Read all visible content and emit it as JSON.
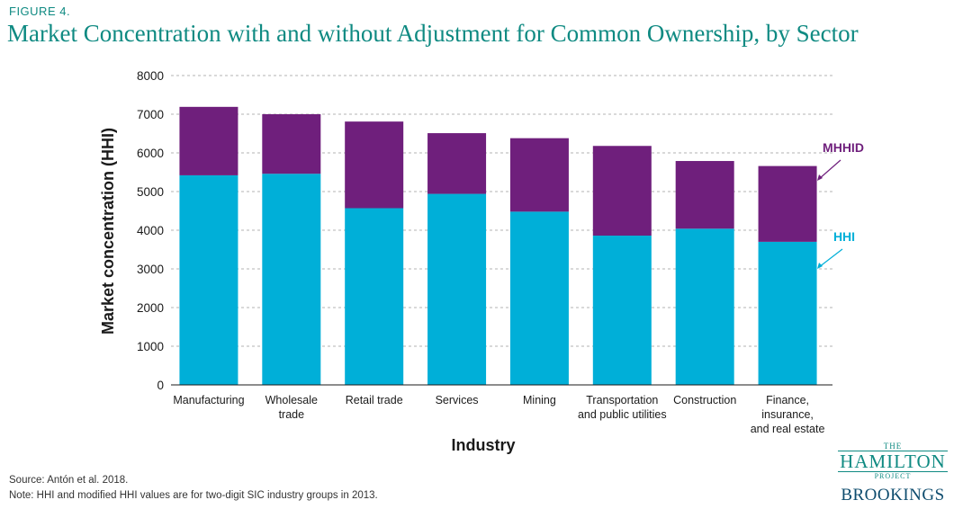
{
  "header": {
    "figure_label": "FIGURE 4.",
    "title": "Market Concentration with and without Adjustment for Common Ownership, by Sector"
  },
  "chart_data": {
    "type": "bar",
    "stacked": true,
    "categories": [
      [
        "Manufacturing"
      ],
      [
        "Wholesale",
        "trade"
      ],
      [
        "Retail trade"
      ],
      [
        "Services"
      ],
      [
        "Mining"
      ],
      [
        "Transportation",
        "and public utilities"
      ],
      [
        "Construction"
      ],
      [
        "Finance,",
        "insurance,",
        "and real estate"
      ]
    ],
    "series": [
      {
        "name": "HHI",
        "color": "#00afd8",
        "values": [
          5420,
          5460,
          4570,
          4940,
          4480,
          3860,
          4040,
          3700
        ]
      },
      {
        "name": "MHHID",
        "color": "#6f1f7c",
        "totals": [
          7190,
          7000,
          6810,
          6510,
          6380,
          6180,
          5790,
          5660
        ]
      }
    ],
    "xlabel": "Industry",
    "ylabel": "Market concentration (HHI)",
    "ylim": [
      0,
      8000
    ],
    "yticks": [
      0,
      1000,
      2000,
      3000,
      4000,
      5000,
      6000,
      7000,
      8000
    ],
    "grid": "horizontal-dashed",
    "legend": "annotated-right"
  },
  "footer": {
    "source": "Source: Antón et al. 2018.",
    "note": "Note: HHI and modified HHI values are for two-digit SIC industry groups in 2013."
  },
  "logo": {
    "line1": "THE",
    "line2": "HAMILTON",
    "line3": "PROJECT",
    "line4": "BROOKINGS"
  }
}
